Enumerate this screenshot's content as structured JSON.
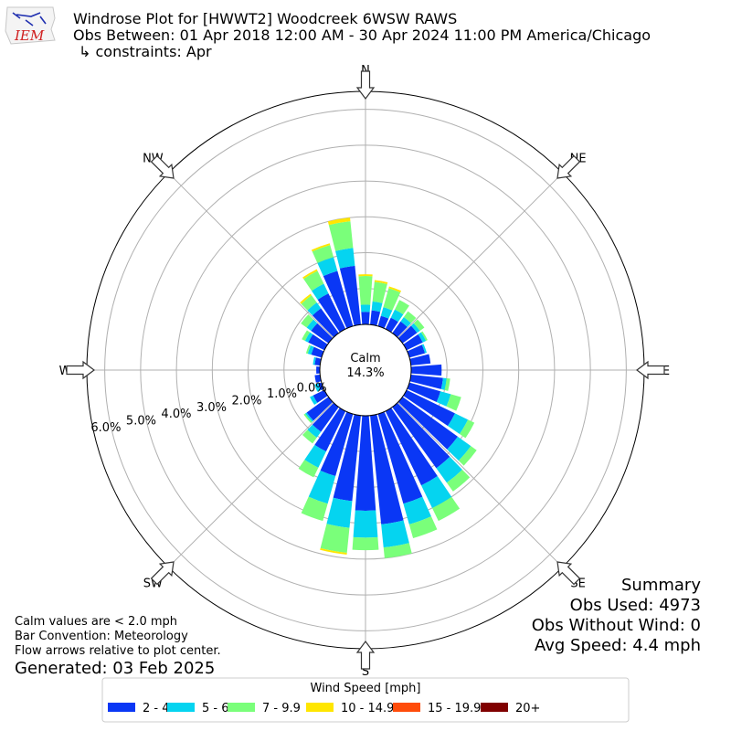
{
  "header": {
    "logo_text": "IEM",
    "title": "Windrose Plot for [HWWT2] Woodcreek 6WSW RAWS",
    "subtitle": "Obs Between: 01 Apr 2018 12:00 AM - 30 Apr 2024 11:00 PM America/Chicago",
    "constraints": "↳ constraints: Apr"
  },
  "summary": {
    "heading": "Summary",
    "obs_used": "Obs Used: 4973",
    "obs_without_wind": "Obs Without Wind: 0",
    "avg_speed": "Avg Speed: 4.4 mph"
  },
  "notes": {
    "calm_note": "Calm values are < 2.0 mph",
    "bar_convention": "Bar Convention: Meteorology",
    "flow_arrows": "Flow arrows relative to plot center.",
    "generated": "Generated: 03 Feb 2025"
  },
  "chart_data": {
    "type": "windrose",
    "calm_label": "Calm",
    "calm_value": "14.3%",
    "radial_unit": "%",
    "radial_ticks": [
      "0.0%",
      "1.0%",
      "2.0%",
      "3.0%",
      "4.0%",
      "5.0%",
      "6.0%"
    ],
    "radial_max": 6.5,
    "grid": true,
    "compass_labels": [
      "N",
      "NE",
      "E",
      "SE",
      "S",
      "SW",
      "W",
      "NW"
    ],
    "legend_title": "Wind Speed [mph]",
    "legend_placement": "bottom",
    "bins": [
      {
        "label": "2 - 4.9",
        "color": "#0a37f5"
      },
      {
        "label": "5 - 6.9",
        "color": "#05d4f0"
      },
      {
        "label": "7 - 9.9",
        "color": "#7aff7a"
      },
      {
        "label": "10 - 14.9",
        "color": "#ffe600"
      },
      {
        "label": "15 - 19.9",
        "color": "#ff4c0a"
      },
      {
        "label": "20+",
        "color": "#800000"
      }
    ],
    "directions_deg": [
      0,
      10,
      20,
      30,
      40,
      50,
      60,
      70,
      80,
      90,
      100,
      110,
      120,
      130,
      140,
      150,
      160,
      170,
      180,
      190,
      200,
      210,
      220,
      230,
      240,
      250,
      260,
      270,
      280,
      290,
      300,
      310,
      320,
      330,
      340,
      350
    ],
    "values": [
      [
        0.35,
        0.2,
        0.8,
        0.05,
        0,
        0
      ],
      [
        0.4,
        0.25,
        0.55,
        0.05,
        0,
        0
      ],
      [
        0.3,
        0.25,
        0.55,
        0.05,
        0,
        0
      ],
      [
        0.35,
        0.25,
        0.3,
        0,
        0,
        0
      ],
      [
        0.4,
        0.15,
        0.2,
        0,
        0,
        0
      ],
      [
        0.5,
        0.1,
        0.15,
        0,
        0,
        0
      ],
      [
        0.5,
        0.1,
        0.05,
        0,
        0,
        0
      ],
      [
        0.45,
        0.05,
        0,
        0,
        0,
        0
      ],
      [
        0.55,
        0,
        0,
        0,
        0,
        0
      ],
      [
        0.85,
        0,
        0,
        0,
        0,
        0
      ],
      [
        0.9,
        0.1,
        0.1,
        0,
        0,
        0
      ],
      [
        0.9,
        0.3,
        0.3,
        0,
        0,
        0
      ],
      [
        1.5,
        0.4,
        0.2,
        0,
        0,
        0
      ],
      [
        1.9,
        0.45,
        0.2,
        0,
        0,
        0
      ],
      [
        2.1,
        0.5,
        0.3,
        0,
        0,
        0
      ],
      [
        2.3,
        0.7,
        0.4,
        0,
        0,
        0
      ],
      [
        2.6,
        0.6,
        0.4,
        0,
        0,
        0
      ],
      [
        3.05,
        0.65,
        0.3,
        0,
        0,
        0
      ],
      [
        2.65,
        0.75,
        0.35,
        0,
        0,
        0
      ],
      [
        2.4,
        0.75,
        0.7,
        0.05,
        0,
        0
      ],
      [
        1.8,
        0.8,
        0.5,
        0,
        0,
        0
      ],
      [
        1.25,
        0.5,
        0.3,
        0,
        0,
        0
      ],
      [
        0.85,
        0.2,
        0.2,
        0,
        0,
        0
      ],
      [
        0.75,
        0.05,
        0.05,
        0,
        0,
        0
      ],
      [
        0.35,
        0.1,
        0,
        0,
        0,
        0
      ],
      [
        0.1,
        0.1,
        0,
        0,
        0,
        0
      ],
      [
        0.15,
        0,
        0,
        0,
        0,
        0
      ],
      [
        0.1,
        0,
        0,
        0,
        0,
        0
      ],
      [
        0.15,
        0.05,
        0,
        0,
        0,
        0
      ],
      [
        0.3,
        0.1,
        0.05,
        0,
        0,
        0
      ],
      [
        0.5,
        0.1,
        0.1,
        0,
        0,
        0
      ],
      [
        0.6,
        0.15,
        0.2,
        0,
        0,
        0
      ],
      [
        0.85,
        0.2,
        0.25,
        0.05,
        0,
        0
      ],
      [
        1.1,
        0.3,
        0.4,
        0.05,
        0,
        0
      ],
      [
        1.6,
        0.4,
        0.35,
        0.05,
        0,
        0
      ],
      [
        1.65,
        0.5,
        0.75,
        0.1,
        0,
        0
      ]
    ]
  }
}
